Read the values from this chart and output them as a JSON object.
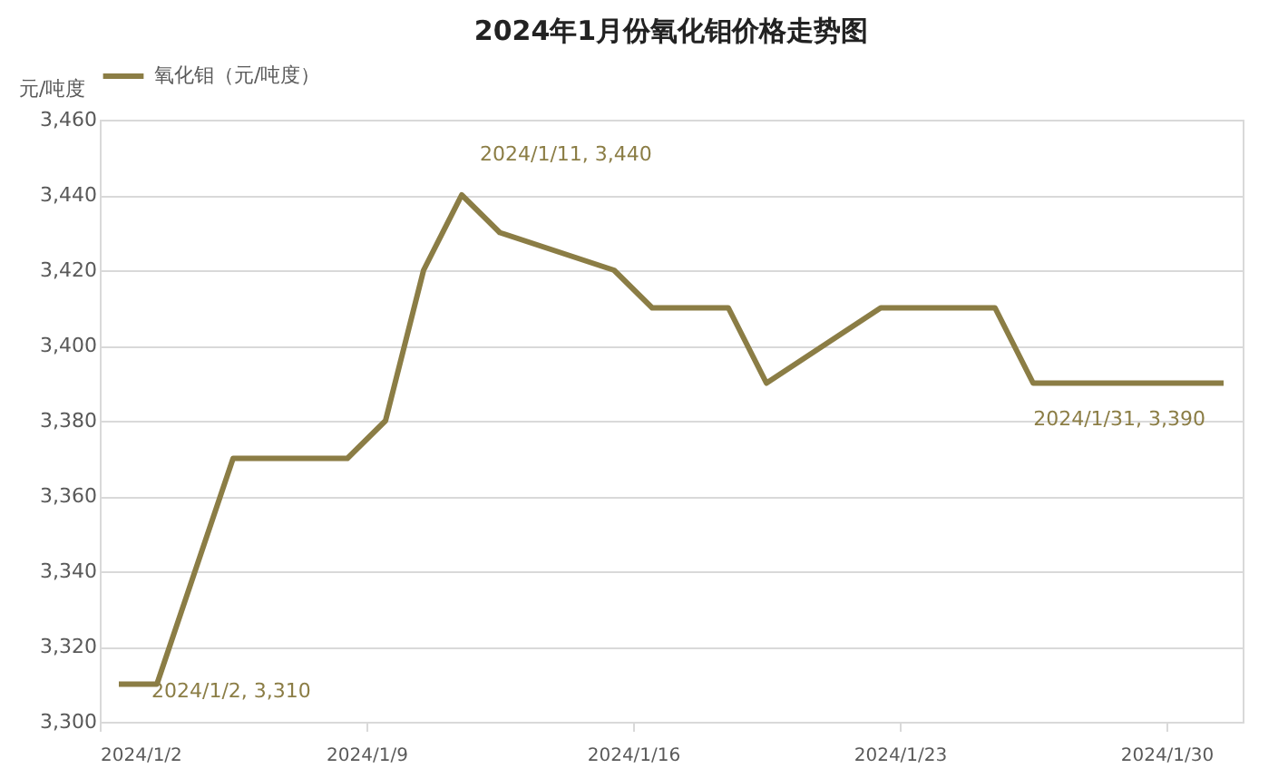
{
  "chart_data": {
    "type": "line",
    "title": "2024年1月份氧化钼价格走势图",
    "ylabel": "元/吨度",
    "legend": "top",
    "x": [
      "2024-01-02T12:00",
      "2024-01-03T12:00",
      "2024-01-05T12:00",
      "2024-01-08T12:00",
      "2024-01-09T12:00",
      "2024-01-10T12:00",
      "2024-01-11T12:00",
      "2024-01-12T12:00",
      "2024-01-15T12:00",
      "2024-01-16T12:00",
      "2024-01-18T12:00",
      "2024-01-19T12:00",
      "2024-01-22T12:00",
      "2024-01-25T12:00",
      "2024-01-26T12:00",
      "2024-01-31T12:00"
    ],
    "series": [
      {
        "name": "氧化钼（元/吨度）",
        "color": "#8b7d45",
        "values": [
          3310,
          3310,
          3370,
          3370,
          3380,
          3420,
          3440,
          3430,
          3420,
          3410,
          3410,
          3390,
          3410,
          3410,
          3390,
          3390
        ]
      }
    ],
    "xlim": [
      "2024-01-02",
      "2024-02-01"
    ],
    "xticks": [
      {
        "value": "2024-01-02",
        "label": "2024/1/2"
      },
      {
        "value": "2024-01-09",
        "label": "2024/1/9"
      },
      {
        "value": "2024-01-16",
        "label": "2024/1/16"
      },
      {
        "value": "2024-01-23",
        "label": "2024/1/23"
      },
      {
        "value": "2024-01-30",
        "label": "2024/1/30"
      }
    ],
    "ylim": [
      3300,
      3460
    ],
    "yticks": [
      {
        "value": 3300,
        "label": "3,300"
      },
      {
        "value": 3320,
        "label": "3,320"
      },
      {
        "value": 3340,
        "label": "3,340"
      },
      {
        "value": 3360,
        "label": "3,360"
      },
      {
        "value": 3380,
        "label": "3,380"
      },
      {
        "value": 3400,
        "label": "3,400"
      },
      {
        "value": 3420,
        "label": "3,420"
      },
      {
        "value": 3440,
        "label": "3,440"
      },
      {
        "value": 3460,
        "label": "3,460"
      }
    ],
    "grid": "y",
    "line_style": "solid",
    "marker": "none",
    "annotations": [
      {
        "text": "2024/1/2, 3,310",
        "x": "2024-01-02T12:00",
        "y": 3310
      },
      {
        "text": "2024/1/11, 3,440",
        "x": "2024-01-11T12:00",
        "y": 3440
      },
      {
        "text": "2024/1/31, 3,390",
        "x": "2024-01-31T12:00",
        "y": 3390
      }
    ]
  }
}
